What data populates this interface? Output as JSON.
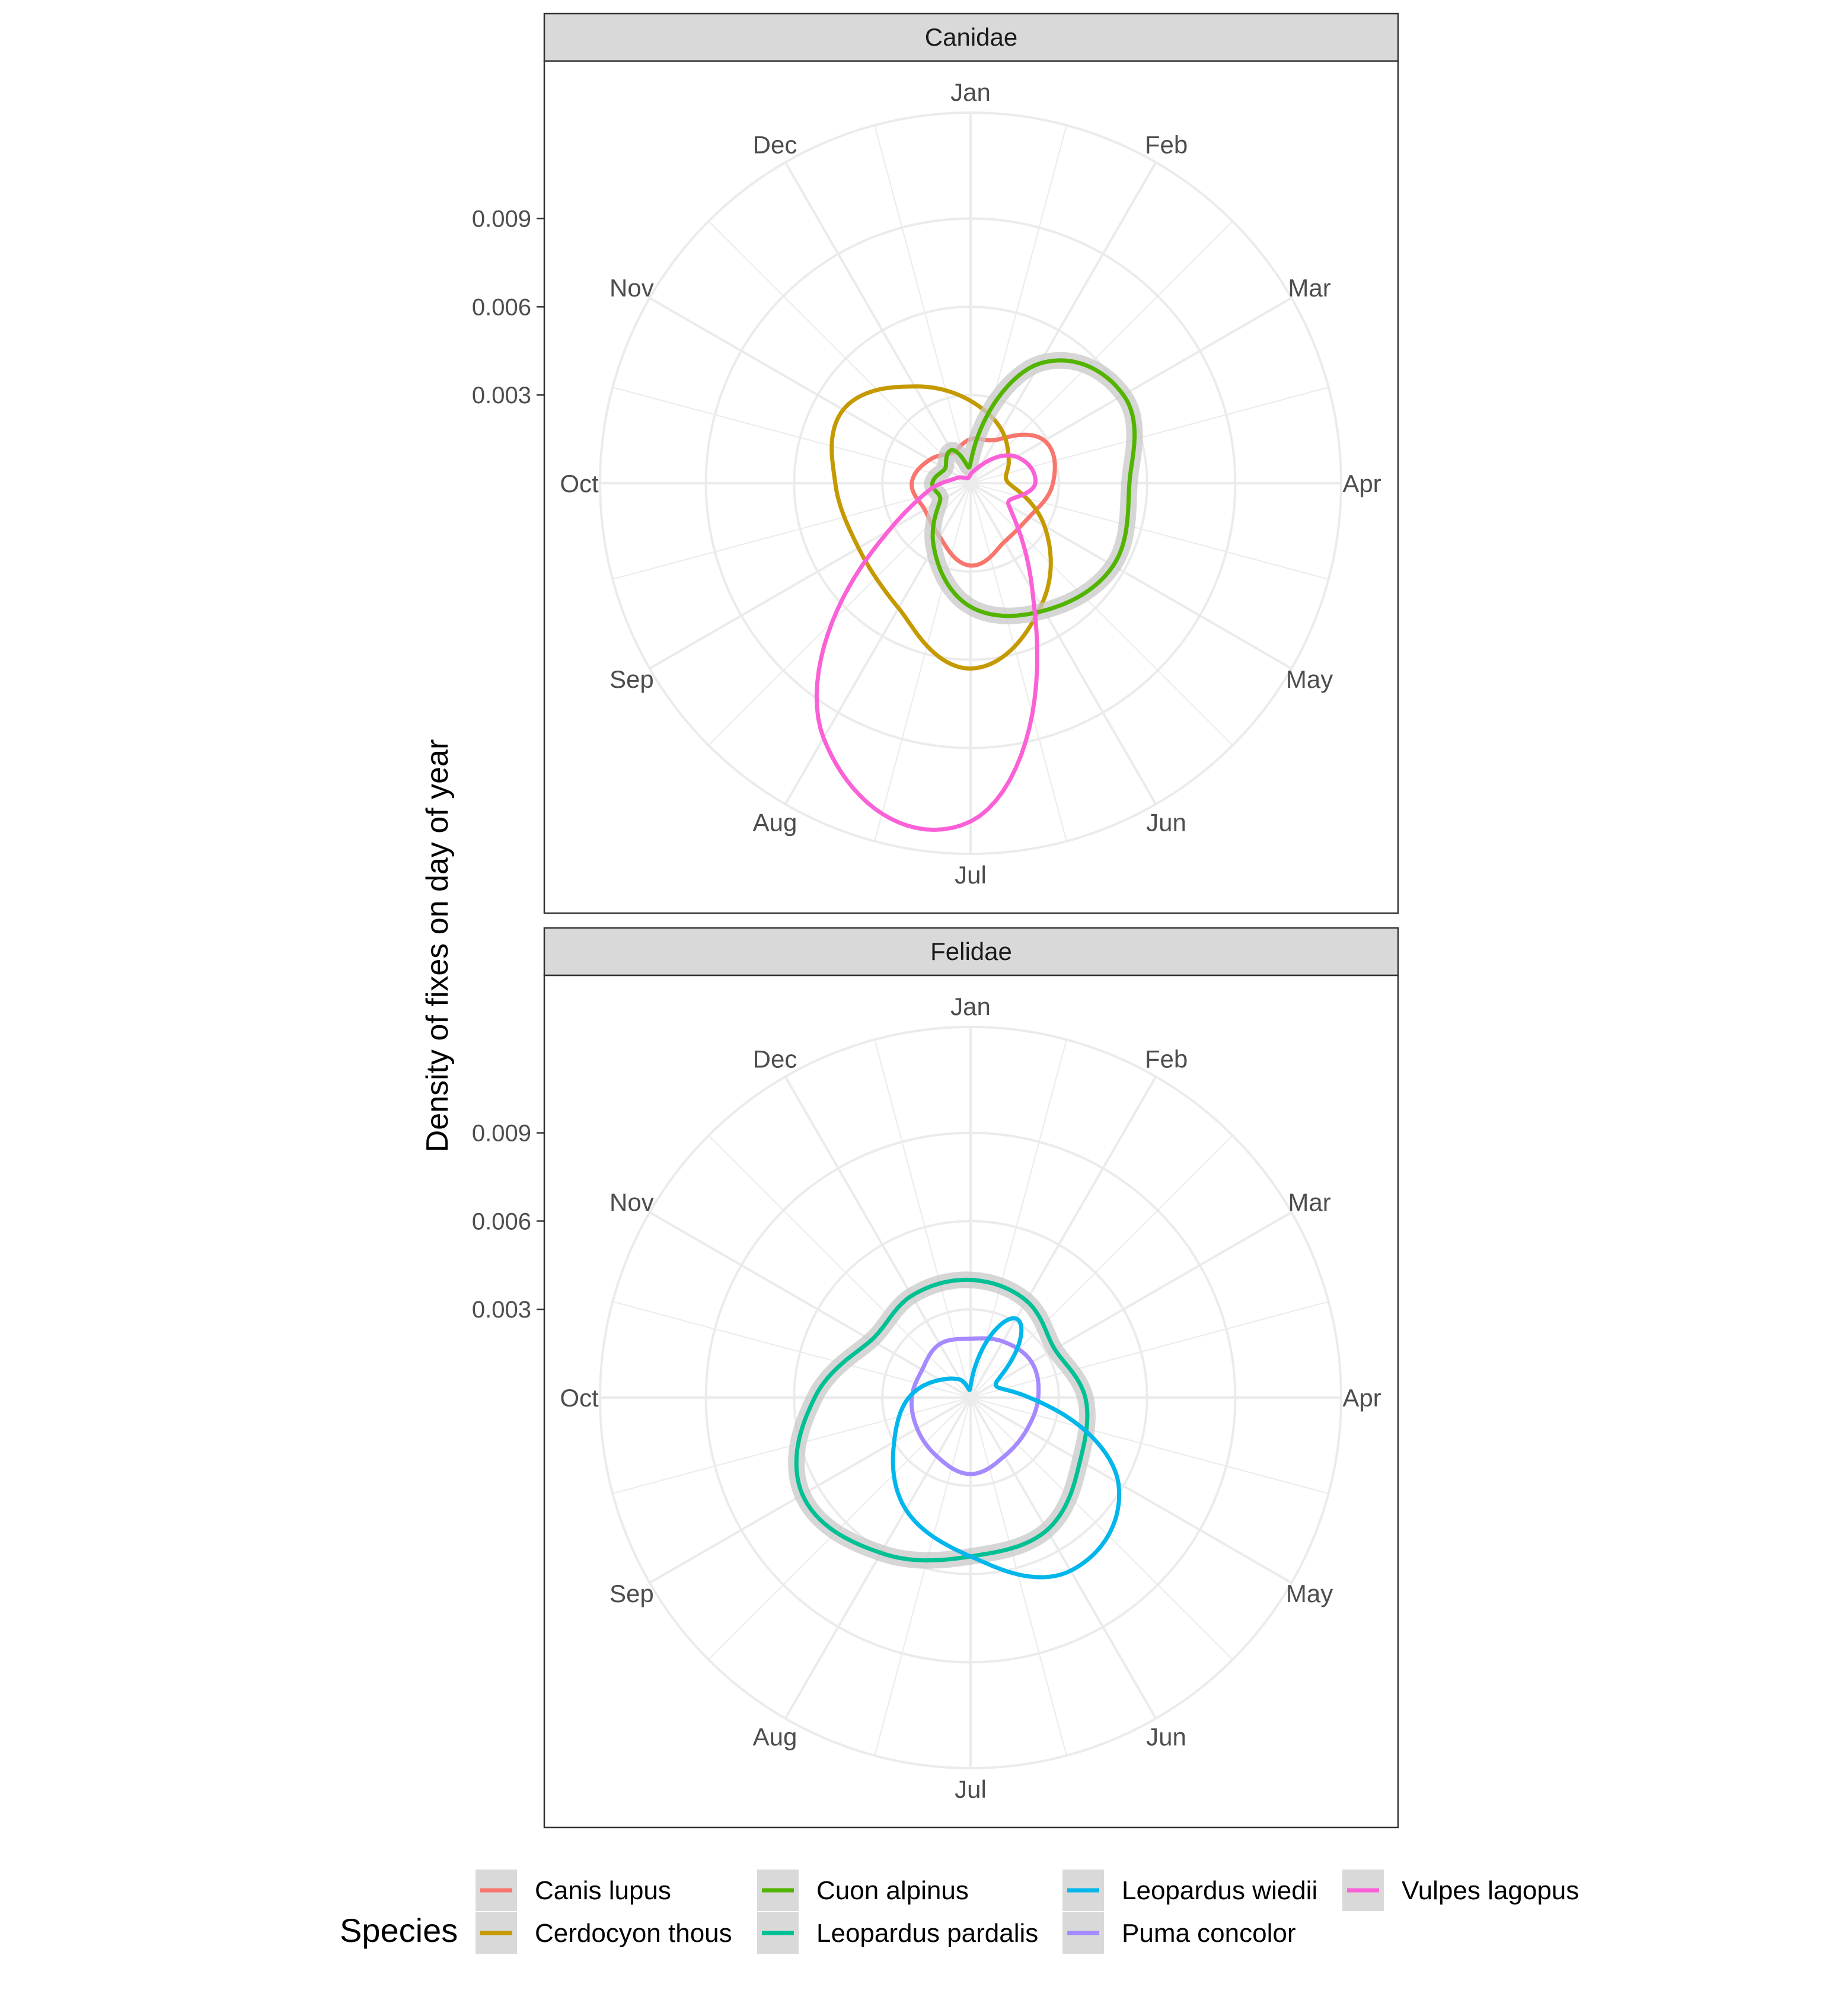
{
  "chart_data": {
    "type": "line",
    "coord": "polar",
    "ylabel": "Density of fixes on day of year",
    "theta_labels": [
      "Jan",
      "Feb",
      "Mar",
      "Apr",
      "May",
      "Jun",
      "Jul",
      "Aug",
      "Sep",
      "Oct",
      "Nov",
      "Dec"
    ],
    "r_ticks": [
      "0.003",
      "0.006",
      "0.009"
    ],
    "r_tick_values": [
      0.003,
      0.006,
      0.009
    ],
    "rlim": [
      0,
      0.0126
    ],
    "grid": true,
    "legend": {
      "title": "Species",
      "position": "bottom",
      "entries": [
        {
          "label": "Canis lupus",
          "color": "#F8766D"
        },
        {
          "label": "Cerdocyon thous",
          "color": "#C49A00"
        },
        {
          "label": "Cuon alpinus",
          "color": "#53B400"
        },
        {
          "label": "Leopardus pardalis",
          "color": "#00C094"
        },
        {
          "label": "Leopardus wiedii",
          "color": "#00B6EB"
        },
        {
          "label": "Puma concolor",
          "color": "#A58AFF"
        },
        {
          "label": "Vulpes lagopus",
          "color": "#FB61D7"
        }
      ]
    },
    "angles_deg": [
      0,
      30,
      60,
      90,
      120,
      150,
      180,
      210,
      240,
      270,
      300,
      330
    ],
    "panels": [
      {
        "title": "Canidae",
        "series": [
          {
            "name": "Canis lupus",
            "color": "#F8766D",
            "band": false,
            "values": [
              0.0015,
              0.0017,
              0.0029,
              0.0028,
              0.0023,
              0.0023,
              0.0028,
              0.0021,
              0.0018,
              0.002,
              0.0016,
              0.0012
            ]
          },
          {
            "name": "Cerdocyon thous",
            "color": "#C49A00",
            "band": false,
            "values": [
              0.0028,
              0.0021,
              0.0015,
              0.0013,
              0.0029,
              0.0048,
              0.0063,
              0.0049,
              0.0044,
              0.0046,
              0.005,
              0.0038
            ]
          },
          {
            "name": "Cuon alpinus",
            "color": "#53B400",
            "band": true,
            "values": [
              0.0007,
              0.0047,
              0.006,
              0.0054,
              0.0056,
              0.005,
              0.0042,
              0.0025,
              0.0012,
              0.0013,
              0.001,
              0.0013
            ]
          },
          {
            "name": "Vulpes lagopus",
            "color": "#FB61D7",
            "band": false,
            "values": [
              0.0003,
              0.0007,
              0.0018,
              0.0022,
              0.0015,
              0.0042,
              0.0115,
              0.01,
              0.0032,
              0.001,
              0.0004,
              0.0002
            ]
          }
        ]
      },
      {
        "title": "Felidae",
        "series": [
          {
            "name": "Leopardus pardalis",
            "color": "#00C094",
            "band": true,
            "values": [
              0.004,
              0.0038,
              0.0033,
              0.0039,
              0.0043,
              0.0052,
              0.0054,
              0.0061,
              0.0066,
              0.0053,
              0.0039,
              0.004
            ]
          },
          {
            "name": "Puma concolor",
            "color": "#A58AFF",
            "band": false,
            "values": [
              0.002,
              0.0022,
              0.0024,
              0.0023,
              0.0022,
              0.0023,
              0.0026,
              0.0023,
              0.0021,
              0.002,
              0.0019,
              0.0021
            ]
          },
          {
            "name": "Leopardus wiedii",
            "color": "#00B6EB",
            "band": false,
            "values": [
              0.0004,
              0.0031,
              0.001,
              0.002,
              0.0058,
              0.0068,
              0.0054,
              0.0044,
              0.003,
              0.0021,
              0.0012,
              0.0007
            ]
          }
        ]
      }
    ]
  }
}
